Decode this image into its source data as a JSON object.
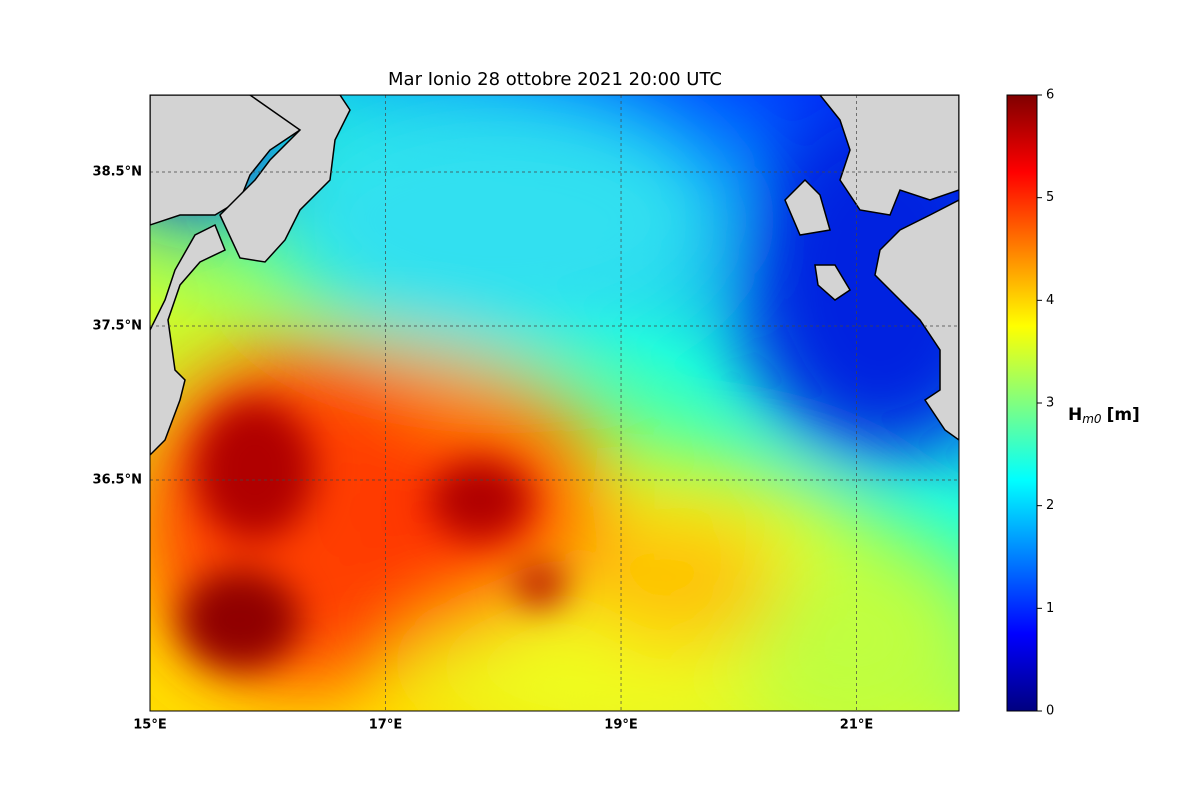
{
  "chart_data": {
    "type": "map",
    "title": "Mar Ionio  28 ottobre 2021  20:00 UTC",
    "xlim": [
      15,
      21.87
    ],
    "ylim": [
      35,
      39
    ],
    "xticks": [
      {
        "value": 15,
        "label": "15°E"
      },
      {
        "value": 17,
        "label": "17°E"
      },
      {
        "value": 19,
        "label": "19°E"
      },
      {
        "value": 21,
        "label": "21°E"
      }
    ],
    "yticks": [
      {
        "value": 36.5,
        "label": "36.5°N"
      },
      {
        "value": 37.5,
        "label": "37.5°N"
      },
      {
        "value": 38.5,
        "label": "38.5°N"
      }
    ],
    "grid": true,
    "colorbar": {
      "label": "H",
      "label_sub": "m0",
      "label_unit": "[m]",
      "colormap": "jet",
      "lim": [
        0,
        6
      ],
      "ticks": [
        0,
        1,
        2,
        3,
        4,
        5,
        6
      ]
    }
  }
}
